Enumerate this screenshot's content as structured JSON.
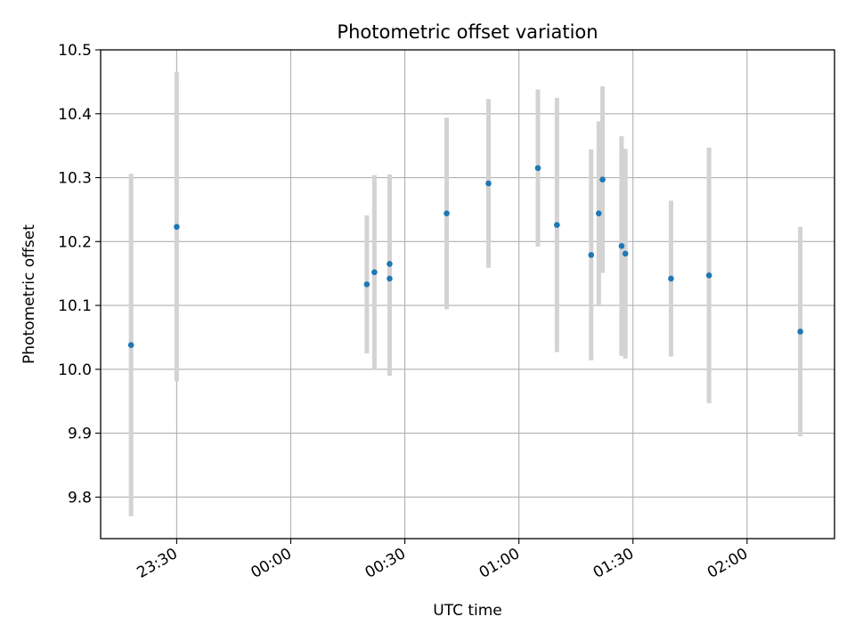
{
  "chart_data": {
    "type": "scatter",
    "title": "Photometric offset variation",
    "xlabel": "UTC time",
    "ylabel": "Photometric offset",
    "grid": true,
    "xlim": [
      "23:10",
      "02:23"
    ],
    "ylim": [
      9.735,
      10.5
    ],
    "x_ticks": [
      "23:30",
      "00:00",
      "00:30",
      "01:00",
      "01:30",
      "02:00"
    ],
    "y_ticks": [
      "9.8",
      "9.9",
      "10.0",
      "10.1",
      "10.2",
      "10.3",
      "10.4",
      "10.5"
    ],
    "colors": {
      "point": "#1f77b4",
      "errorbar": "#d3d3d3",
      "grid": "#b0b0b0"
    },
    "points": [
      {
        "x": "23:18",
        "y": 10.038,
        "yerr": 0.268
      },
      {
        "x": "23:30",
        "y": 10.223,
        "yerr": 0.242
      },
      {
        "x": "00:20",
        "y": 10.133,
        "yerr": 0.108
      },
      {
        "x": "00:22",
        "y": 10.152,
        "yerr": 0.152
      },
      {
        "x": "00:26",
        "y": 10.142,
        "yerr": 0.152
      },
      {
        "x": "00:26",
        "y": 10.165,
        "yerr": 0.14
      },
      {
        "x": "00:41",
        "y": 10.244,
        "yerr": 0.15
      },
      {
        "x": "00:52",
        "y": 10.291,
        "yerr": 0.132
      },
      {
        "x": "01:05",
        "y": 10.315,
        "yerr": 0.123
      },
      {
        "x": "01:10",
        "y": 10.226,
        "yerr": 0.199
      },
      {
        "x": "01:19",
        "y": 10.179,
        "yerr": 0.165
      },
      {
        "x": "01:21",
        "y": 10.244,
        "yerr": 0.144
      },
      {
        "x": "01:22",
        "y": 10.297,
        "yerr": 0.146
      },
      {
        "x": "01:27",
        "y": 10.193,
        "yerr": 0.172
      },
      {
        "x": "01:28",
        "y": 10.181,
        "yerr": 0.164
      },
      {
        "x": "01:40",
        "y": 10.142,
        "yerr": 0.122
      },
      {
        "x": "01:50",
        "y": 10.147,
        "yerr": 0.2
      },
      {
        "x": "02:14",
        "y": 10.059,
        "yerr": 0.164
      }
    ]
  }
}
